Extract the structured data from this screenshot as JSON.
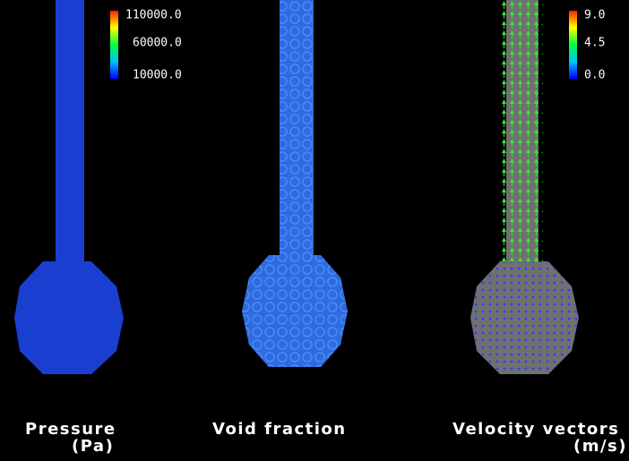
{
  "panels": [
    {
      "label": "Pressure",
      "unit": "(Pa)",
      "colorbar": [
        "110000.0",
        "60000.0",
        "10000.0"
      ]
    },
    {
      "label": "Void fraction"
    },
    {
      "label": "Velocity vectors",
      "unit": "(m/s)",
      "colorbar": [
        "9.0",
        "4.5",
        "0.0"
      ]
    }
  ]
}
